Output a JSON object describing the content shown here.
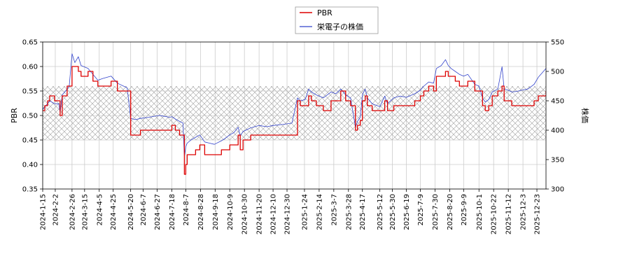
{
  "chart_data": {
    "type": "line",
    "legend": {
      "placement": "top-center",
      "entries": [
        {
          "label": "PBR",
          "color": "#dd0000"
        },
        {
          "label": "栄電子の株価",
          "color": "#3344cc"
        }
      ]
    },
    "y_left": {
      "label": "PBR",
      "ylim": [
        0.35,
        0.65
      ],
      "ticks": [
        "0.35",
        "0.40",
        "0.45",
        "0.50",
        "0.55",
        "0.60",
        "0.65"
      ]
    },
    "y_right": {
      "label": "株価",
      "ylim": [
        300,
        550
      ],
      "ticks": [
        "300",
        "350",
        "400",
        "450",
        "500",
        "550"
      ]
    },
    "x_axis": {
      "range": [
        "2024-01-15",
        "2026-01-05"
      ],
      "tick_labels": [
        "2024-1-15",
        "2024-2-2",
        "2024-2-26",
        "2024-3-15",
        "2024-4-5",
        "2024-4-25",
        "2024-5-20",
        "2024-6-7",
        "2024-6-27",
        "2024-7-18",
        "2024-8-7",
        "2024-8-28",
        "2024-9-18",
        "2024-10-9",
        "2024-10-30",
        "2024-11-20",
        "2024-12-10",
        "2024-12-30",
        "2025-1-24",
        "2025-2-14",
        "2025-3-7",
        "2025-3-28",
        "2025-4-17",
        "2025-5-12",
        "2025-5-30",
        "2025-6-19",
        "2025-7-9",
        "2025-7-30",
        "2025-8-20",
        "2025-9-9",
        "2025-10-1",
        "2025-10-22",
        "2025-11-12",
        "2025-12-3",
        "2025-12-23"
      ]
    },
    "band": {
      "axis": "pbr",
      "low": 0.45,
      "high": 0.56,
      "pattern": "crosshatch"
    },
    "grid": true,
    "series": [
      {
        "name": "PBR",
        "axis": "left",
        "color": "#dd0000",
        "step": true,
        "points": [
          [
            "2024-01-15",
            0.51
          ],
          [
            "2024-01-18",
            0.52
          ],
          [
            "2024-01-22",
            0.53
          ],
          [
            "2024-01-25",
            0.54
          ],
          [
            "2024-02-01",
            0.53
          ],
          [
            "2024-02-07",
            0.53
          ],
          [
            "2024-02-09",
            0.5
          ],
          [
            "2024-02-12",
            0.54
          ],
          [
            "2024-02-19",
            0.56
          ],
          [
            "2024-02-22",
            0.56
          ],
          [
            "2024-02-26",
            0.6
          ],
          [
            "2024-03-01",
            0.6
          ],
          [
            "2024-03-06",
            0.59
          ],
          [
            "2024-03-10",
            0.58
          ],
          [
            "2024-03-20",
            0.59
          ],
          [
            "2024-03-27",
            0.57
          ],
          [
            "2024-04-03",
            0.56
          ],
          [
            "2024-04-10",
            0.56
          ],
          [
            "2024-04-22",
            0.57
          ],
          [
            "2024-05-01",
            0.55
          ],
          [
            "2024-05-15",
            0.55
          ],
          [
            "2024-05-20",
            0.46
          ],
          [
            "2024-05-27",
            0.46
          ],
          [
            "2024-06-03",
            0.47
          ],
          [
            "2024-06-15",
            0.47
          ],
          [
            "2024-06-30",
            0.47
          ],
          [
            "2024-07-05",
            0.47
          ],
          [
            "2024-07-15",
            0.47
          ],
          [
            "2024-07-18",
            0.48
          ],
          [
            "2024-07-23",
            0.47
          ],
          [
            "2024-07-29",
            0.46
          ],
          [
            "2024-08-03",
            0.46
          ],
          [
            "2024-08-05",
            0.38
          ],
          [
            "2024-08-07",
            0.4
          ],
          [
            "2024-08-09",
            0.42
          ],
          [
            "2024-08-14",
            0.42
          ],
          [
            "2024-08-21",
            0.43
          ],
          [
            "2024-08-27",
            0.44
          ],
          [
            "2024-09-03",
            0.42
          ],
          [
            "2024-09-10",
            0.42
          ],
          [
            "2024-09-17",
            0.42
          ],
          [
            "2024-09-27",
            0.43
          ],
          [
            "2024-10-01",
            0.43
          ],
          [
            "2024-10-09",
            0.44
          ],
          [
            "2024-10-15",
            0.44
          ],
          [
            "2024-10-21",
            0.46
          ],
          [
            "2024-10-24",
            0.43
          ],
          [
            "2024-10-28",
            0.45
          ],
          [
            "2024-11-01",
            0.45
          ],
          [
            "2024-11-08",
            0.46
          ],
          [
            "2024-11-20",
            0.46
          ],
          [
            "2024-12-01",
            0.46
          ],
          [
            "2024-12-10",
            0.46
          ],
          [
            "2024-12-25",
            0.46
          ],
          [
            "2025-01-06",
            0.46
          ],
          [
            "2025-01-14",
            0.53
          ],
          [
            "2025-01-18",
            0.52
          ],
          [
            "2025-01-25",
            0.52
          ],
          [
            "2025-01-30",
            0.54
          ],
          [
            "2025-02-03",
            0.53
          ],
          [
            "2025-02-10",
            0.52
          ],
          [
            "2025-02-20",
            0.51
          ],
          [
            "2025-03-03",
            0.53
          ],
          [
            "2025-03-10",
            0.53
          ],
          [
            "2025-03-17",
            0.55
          ],
          [
            "2025-03-24",
            0.53
          ],
          [
            "2025-03-31",
            0.52
          ],
          [
            "2025-04-07",
            0.47
          ],
          [
            "2025-04-10",
            0.48
          ],
          [
            "2025-04-14",
            0.49
          ],
          [
            "2025-04-17",
            0.53
          ],
          [
            "2025-04-21",
            0.54
          ],
          [
            "2025-04-24",
            0.52
          ],
          [
            "2025-05-01",
            0.51
          ],
          [
            "2025-05-12",
            0.51
          ],
          [
            "2025-05-19",
            0.53
          ],
          [
            "2025-05-23",
            0.51
          ],
          [
            "2025-06-01",
            0.52
          ],
          [
            "2025-06-10",
            0.52
          ],
          [
            "2025-06-19",
            0.52
          ],
          [
            "2025-07-01",
            0.53
          ],
          [
            "2025-07-09",
            0.54
          ],
          [
            "2025-07-14",
            0.55
          ],
          [
            "2025-07-21",
            0.56
          ],
          [
            "2025-07-28",
            0.55
          ],
          [
            "2025-08-01",
            0.58
          ],
          [
            "2025-08-08",
            0.58
          ],
          [
            "2025-08-14",
            0.59
          ],
          [
            "2025-08-18",
            0.58
          ],
          [
            "2025-08-22",
            0.58
          ],
          [
            "2025-08-28",
            0.57
          ],
          [
            "2025-09-03",
            0.56
          ],
          [
            "2025-09-09",
            0.56
          ],
          [
            "2025-09-15",
            0.57
          ],
          [
            "2025-09-25",
            0.55
          ],
          [
            "2025-10-01",
            0.55
          ],
          [
            "2025-10-06",
            0.52
          ],
          [
            "2025-10-10",
            0.51
          ],
          [
            "2025-10-15",
            0.52
          ],
          [
            "2025-10-20",
            0.54
          ],
          [
            "2025-10-28",
            0.55
          ],
          [
            "2025-11-03",
            0.56
          ],
          [
            "2025-11-06",
            0.53
          ],
          [
            "2025-11-12",
            0.53
          ],
          [
            "2025-11-17",
            0.52
          ],
          [
            "2025-11-24",
            0.52
          ],
          [
            "2025-12-01",
            0.52
          ],
          [
            "2025-12-10",
            0.52
          ],
          [
            "2025-12-19",
            0.53
          ],
          [
            "2025-12-25",
            0.54
          ],
          [
            "2026-01-05",
            0.55
          ]
        ]
      },
      {
        "name": "栄電子の株価",
        "axis": "right",
        "color": "#3344cc",
        "step": false,
        "points": [
          [
            "2024-01-15",
            435
          ],
          [
            "2024-01-18",
            440
          ],
          [
            "2024-01-22",
            445
          ],
          [
            "2024-01-25",
            450
          ],
          [
            "2024-02-01",
            445
          ],
          [
            "2024-02-07",
            445
          ],
          [
            "2024-02-09",
            430
          ],
          [
            "2024-02-12",
            460
          ],
          [
            "2024-02-19",
            470
          ],
          [
            "2024-02-22",
            475
          ],
          [
            "2024-02-26",
            530
          ],
          [
            "2024-03-01",
            515
          ],
          [
            "2024-03-06",
            525
          ],
          [
            "2024-03-10",
            510
          ],
          [
            "2024-03-20",
            505
          ],
          [
            "2024-03-27",
            495
          ],
          [
            "2024-04-03",
            485
          ],
          [
            "2024-04-10",
            488
          ],
          [
            "2024-04-22",
            492
          ],
          [
            "2024-05-01",
            480
          ],
          [
            "2024-05-15",
            472
          ],
          [
            "2024-05-20",
            420
          ],
          [
            "2024-05-27",
            418
          ],
          [
            "2024-06-03",
            420
          ],
          [
            "2024-06-15",
            422
          ],
          [
            "2024-06-30",
            425
          ],
          [
            "2024-07-05",
            424
          ],
          [
            "2024-07-15",
            422
          ],
          [
            "2024-07-18",
            423
          ],
          [
            "2024-07-23",
            419
          ],
          [
            "2024-07-29",
            415
          ],
          [
            "2024-08-03",
            412
          ],
          [
            "2024-08-05",
            355
          ],
          [
            "2024-08-07",
            372
          ],
          [
            "2024-08-09",
            378
          ],
          [
            "2024-08-14",
            383
          ],
          [
            "2024-08-21",
            388
          ],
          [
            "2024-08-27",
            392
          ],
          [
            "2024-09-03",
            380
          ],
          [
            "2024-09-10",
            378
          ],
          [
            "2024-09-17",
            376
          ],
          [
            "2024-09-27",
            382
          ],
          [
            "2024-10-01",
            385
          ],
          [
            "2024-10-09",
            392
          ],
          [
            "2024-10-15",
            396
          ],
          [
            "2024-10-21",
            405
          ],
          [
            "2024-10-24",
            390
          ],
          [
            "2024-10-28",
            398
          ],
          [
            "2024-11-01",
            400
          ],
          [
            "2024-11-08",
            404
          ],
          [
            "2024-11-20",
            408
          ],
          [
            "2024-12-01",
            406
          ],
          [
            "2024-12-10",
            408
          ],
          [
            "2024-12-25",
            410
          ],
          [
            "2025-01-06",
            412
          ],
          [
            "2025-01-14",
            455
          ],
          [
            "2025-01-18",
            450
          ],
          [
            "2025-01-25",
            452
          ],
          [
            "2025-01-30",
            470
          ],
          [
            "2025-02-03",
            465
          ],
          [
            "2025-02-10",
            460
          ],
          [
            "2025-02-20",
            455
          ],
          [
            "2025-03-03",
            465
          ],
          [
            "2025-03-10",
            462
          ],
          [
            "2025-03-17",
            470
          ],
          [
            "2025-03-24",
            460
          ],
          [
            "2025-03-31",
            455
          ],
          [
            "2025-04-07",
            405
          ],
          [
            "2025-04-10",
            415
          ],
          [
            "2025-04-14",
            422
          ],
          [
            "2025-04-17",
            460
          ],
          [
            "2025-04-21",
            470
          ],
          [
            "2025-04-24",
            455
          ],
          [
            "2025-05-01",
            445
          ],
          [
            "2025-05-12",
            440
          ],
          [
            "2025-05-19",
            458
          ],
          [
            "2025-05-23",
            445
          ],
          [
            "2025-06-01",
            455
          ],
          [
            "2025-06-10",
            458
          ],
          [
            "2025-06-19",
            456
          ],
          [
            "2025-07-01",
            462
          ],
          [
            "2025-07-09",
            468
          ],
          [
            "2025-07-14",
            475
          ],
          [
            "2025-07-21",
            482
          ],
          [
            "2025-07-28",
            480
          ],
          [
            "2025-08-01",
            505
          ],
          [
            "2025-08-08",
            510
          ],
          [
            "2025-08-14",
            520
          ],
          [
            "2025-08-18",
            510
          ],
          [
            "2025-08-22",
            505
          ],
          [
            "2025-08-28",
            500
          ],
          [
            "2025-09-03",
            495
          ],
          [
            "2025-09-09",
            492
          ],
          [
            "2025-09-15",
            495
          ],
          [
            "2025-09-25",
            478
          ],
          [
            "2025-10-01",
            475
          ],
          [
            "2025-10-06",
            455
          ],
          [
            "2025-10-10",
            448
          ],
          [
            "2025-10-15",
            452
          ],
          [
            "2025-10-20",
            465
          ],
          [
            "2025-10-28",
            470
          ],
          [
            "2025-11-03",
            508
          ],
          [
            "2025-11-06",
            470
          ],
          [
            "2025-11-12",
            468
          ],
          [
            "2025-11-17",
            465
          ],
          [
            "2025-11-24",
            466
          ],
          [
            "2025-12-01",
            468
          ],
          [
            "2025-12-10",
            470
          ],
          [
            "2025-12-19",
            478
          ],
          [
            "2025-12-25",
            490
          ],
          [
            "2026-01-05",
            505
          ]
        ]
      }
    ]
  }
}
